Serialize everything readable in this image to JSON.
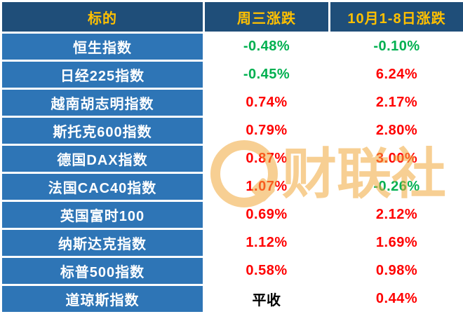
{
  "table": {
    "headers": [
      "标的",
      "周三涨跌",
      "10月1-8日涨跌"
    ],
    "rows": [
      {
        "label": "恒生指数",
        "wed": "-0.48%",
        "wed_state": "neg",
        "period": "-0.10%",
        "period_state": "neg"
      },
      {
        "label": "日经225指数",
        "wed": "-0.45%",
        "wed_state": "neg",
        "period": "6.24%",
        "period_state": "pos"
      },
      {
        "label": "越南胡志明指数",
        "wed": "0.74%",
        "wed_state": "pos",
        "period": "2.17%",
        "period_state": "pos"
      },
      {
        "label": "斯托克600指数",
        "wed": "0.79%",
        "wed_state": "pos",
        "period": "2.80%",
        "period_state": "pos"
      },
      {
        "label": "德国DAX指数",
        "wed": "0.87%",
        "wed_state": "pos",
        "period": "3.00%",
        "period_state": "pos"
      },
      {
        "label": "法国CAC40指数",
        "wed": "1.07%",
        "wed_state": "pos",
        "period": "-0.26%",
        "period_state": "neg"
      },
      {
        "label": "英国富时100",
        "wed": "0.69%",
        "wed_state": "pos",
        "period": "2.12%",
        "period_state": "pos"
      },
      {
        "label": "纳斯达克指数",
        "wed": "1.12%",
        "wed_state": "pos",
        "period": "1.69%",
        "period_state": "pos"
      },
      {
        "label": "标普500指数",
        "wed": "0.58%",
        "wed_state": "pos",
        "period": "0.98%",
        "period_state": "pos"
      },
      {
        "label": "道琼斯指数",
        "wed": "平收",
        "wed_state": "flat",
        "period": "0.44%",
        "period_state": "pos"
      }
    ]
  },
  "chart_data": {
    "type": "table",
    "title": "",
    "columns": [
      "标的",
      "周三涨跌",
      "10月1-8日涨跌"
    ],
    "rows": [
      [
        "恒生指数",
        "-0.48%",
        "-0.10%"
      ],
      [
        "日经225指数",
        "-0.45%",
        "6.24%"
      ],
      [
        "越南胡志明指数",
        "0.74%",
        "2.17%"
      ],
      [
        "斯托克600指数",
        "0.79%",
        "2.80%"
      ],
      [
        "德国DAX指数",
        "0.87%",
        "3.00%"
      ],
      [
        "法国CAC40指数",
        "1.07%",
        "-0.26%"
      ],
      [
        "英国富时100",
        "0.69%",
        "2.12%"
      ],
      [
        "纳斯达克指数",
        "1.12%",
        "1.69%"
      ],
      [
        "标普500指数",
        "0.58%",
        "0.98%"
      ],
      [
        "道琼斯指数",
        "平收",
        "0.44%"
      ]
    ],
    "notes": "red = gain (Chinese convention), green = decline, black = flat"
  },
  "colors": {
    "header_bg": "#1f4e79",
    "header_text": "#ffc000",
    "label_bg": "#2e75b6",
    "label_text": "#ffffff",
    "gain": "#ff0000",
    "decline": "#00b050",
    "flat": "#000000",
    "grid": "#ffffff",
    "watermark": "#f2a93b"
  },
  "watermark": {
    "text": "财联社"
  }
}
